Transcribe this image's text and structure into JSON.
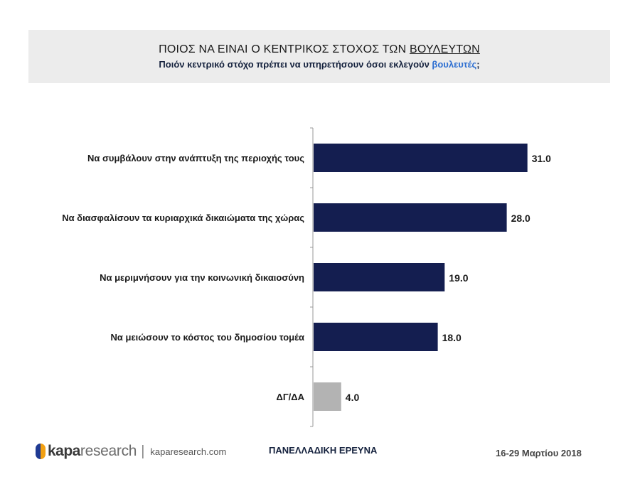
{
  "header": {
    "title_main": "ΠΟΙΟΣ ΝΑ ΕΙΝΑΙ Ο ΚΕΝΤΡΙΚΟΣ ΣΤΟΧΟΣ ΤΩΝ ",
    "title_underlined": "ΒΟΥΛΕΥΤΩΝ",
    "subtitle_main": "Ποιόν κεντρικό στόχο πρέπει να υπηρετήσουν όσοι εκλεγούν ",
    "subtitle_highlight": "βουλευτές",
    "subtitle_end": ";"
  },
  "chart_data": {
    "type": "bar",
    "orientation": "horizontal",
    "categories": [
      "Να συμβάλουν στην ανάπτυξη της περιοχής τους",
      "Να διασφαλίσουν τα κυριαρχικά δικαιώματα της χώρας",
      "Να μεριμνήσουν για την κοινωνική δικαιοσύνη",
      "Να μειώσουν το κόστος του δημοσίου τομέα",
      "ΔΓ/ΔΑ"
    ],
    "values": [
      31.0,
      28.0,
      19.0,
      18.0,
      4.0
    ],
    "value_labels": [
      "31.0",
      "28.0",
      "19.0",
      "18.0",
      "4.0"
    ],
    "colors": [
      "#141e50",
      "#141e50",
      "#141e50",
      "#141e50",
      "#b3b3b3"
    ],
    "xlim": [
      0,
      40
    ],
    "grid": false,
    "legend": "none"
  },
  "footer": {
    "brand_kapa": "kapa",
    "brand_research": "research",
    "brand_separator": "|",
    "brand_url": "kaparesearch.com",
    "center_text": "ΠΑΝΕΛΛΑΔΙΚΗ ΕΡΕΥΝΑ",
    "date": "16-29 Μαρτίου 2018"
  }
}
